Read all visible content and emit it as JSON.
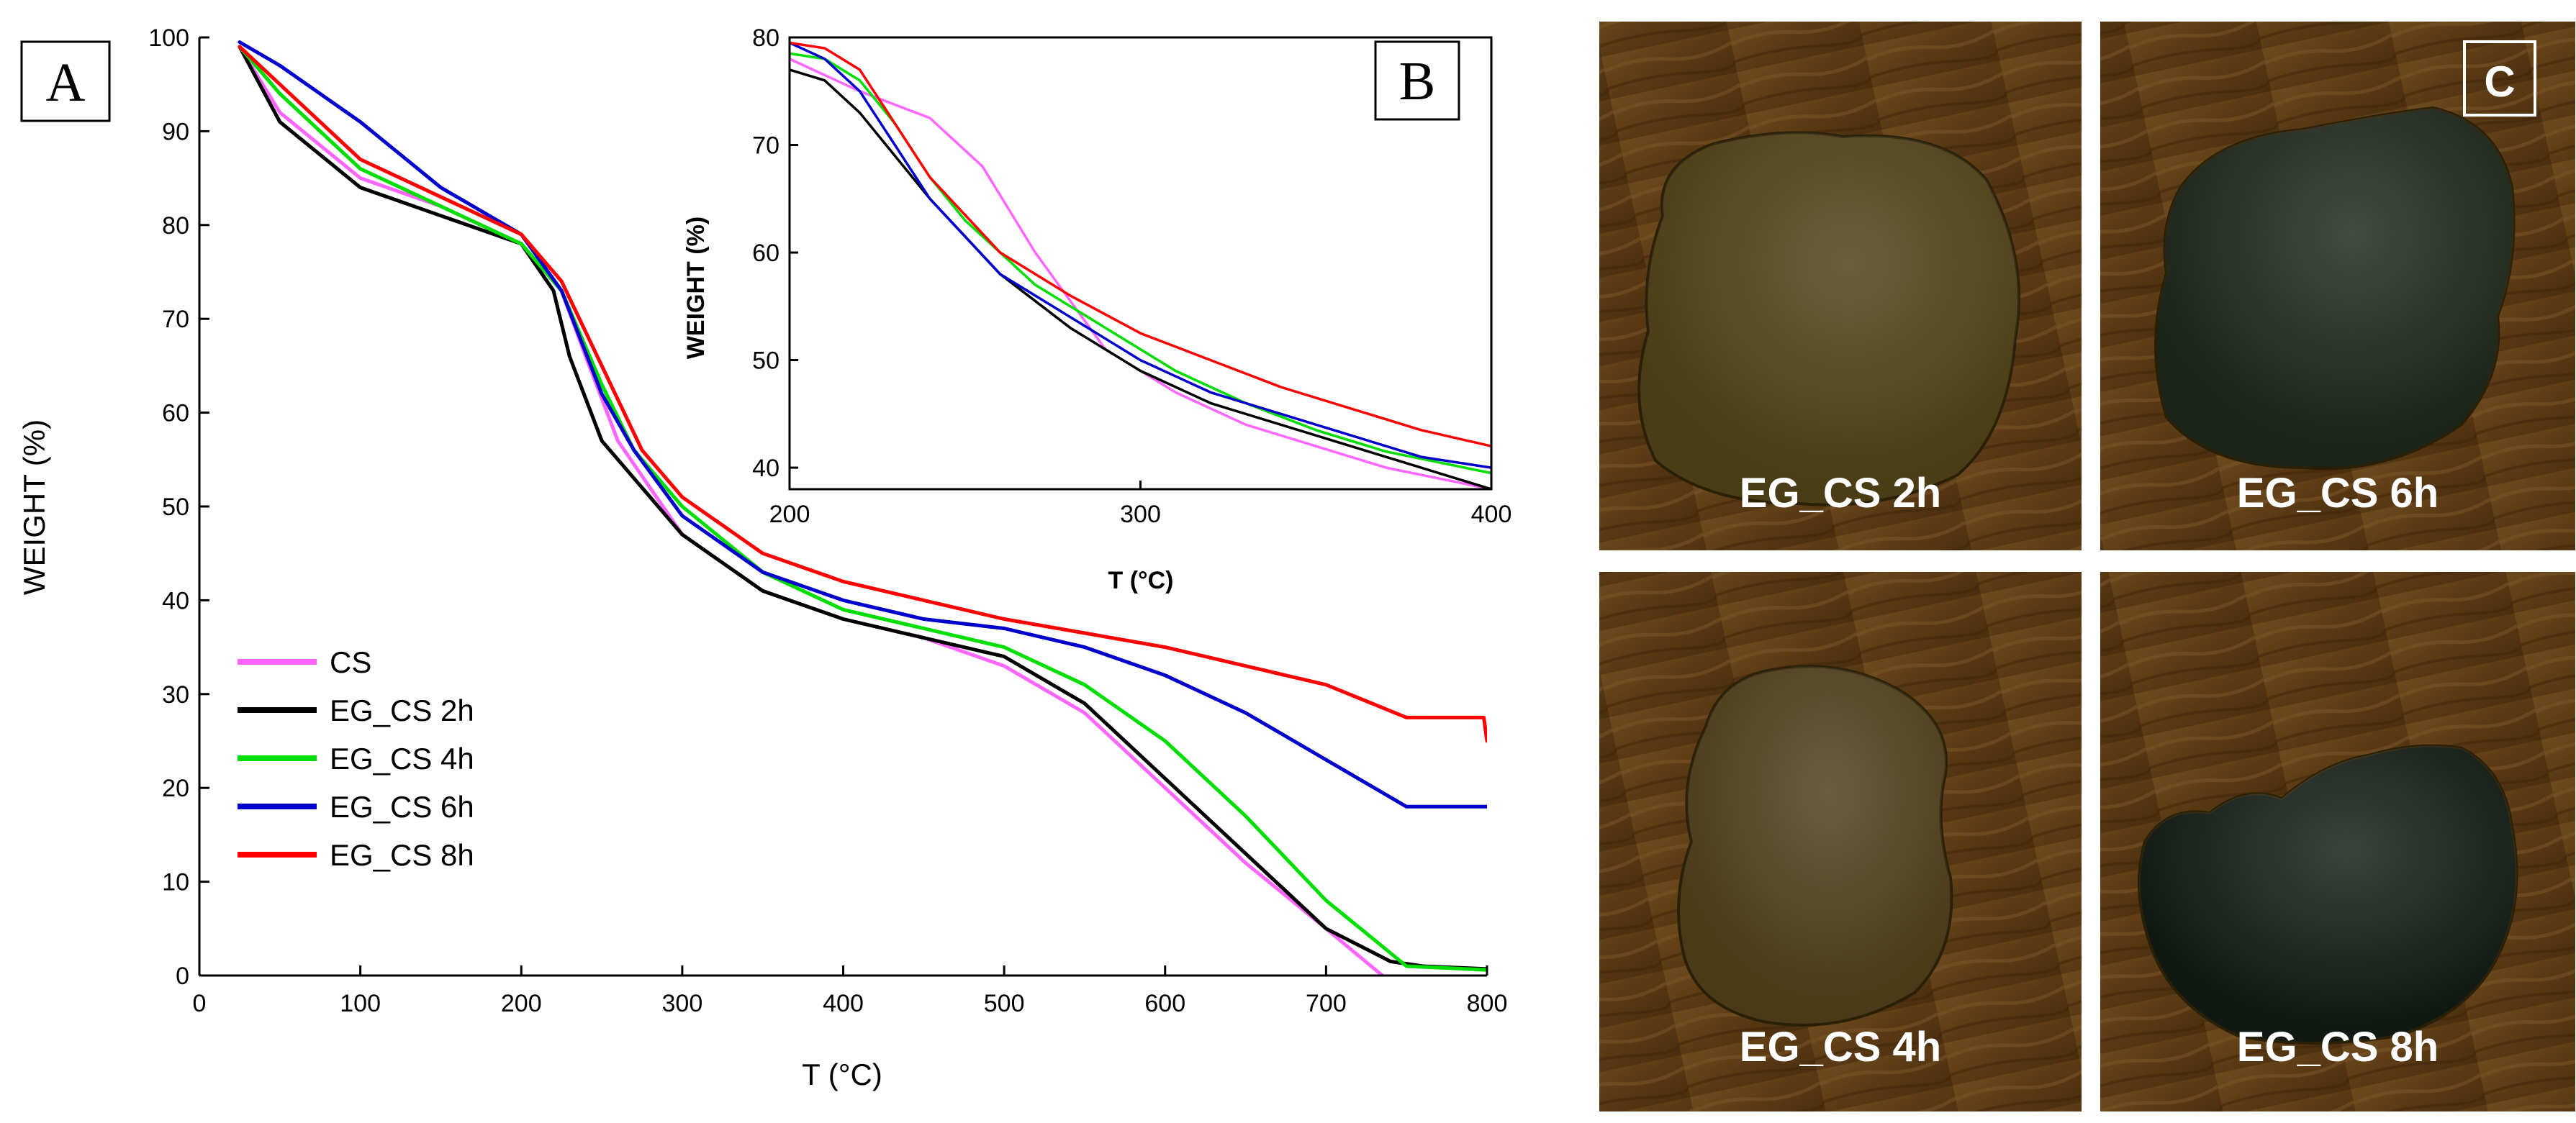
{
  "panels": {
    "a": {
      "letter": "A"
    },
    "b": {
      "letter": "B"
    },
    "c": {
      "letter": "C"
    }
  },
  "chart_data": [
    {
      "type": "line",
      "panel": "A",
      "title": "",
      "xlabel": "T (°C)",
      "ylabel": "WEIGHT (%)",
      "xlim": [
        0,
        800
      ],
      "ylim": [
        0,
        100
      ],
      "xticks": [
        0,
        100,
        200,
        300,
        400,
        500,
        600,
        700,
        800
      ],
      "yticks": [
        0,
        10,
        20,
        30,
        40,
        50,
        60,
        70,
        80,
        90,
        100
      ],
      "legend_position": "bottom-left",
      "series": [
        {
          "name": "CS",
          "color": "#ff66ff",
          "points": [
            [
              25,
              99
            ],
            [
              50,
              92
            ],
            [
              100,
              85
            ],
            [
              150,
              82
            ],
            [
              200,
              78
            ],
            [
              225,
              73
            ],
            [
              240,
              66
            ],
            [
              260,
              57
            ],
            [
              300,
              47
            ],
            [
              350,
              41
            ],
            [
              400,
              38
            ],
            [
              450,
              36
            ],
            [
              500,
              33
            ],
            [
              550,
              28
            ],
            [
              600,
              20
            ],
            [
              650,
              12
            ],
            [
              700,
              5
            ],
            [
              735,
              0
            ]
          ]
        },
        {
          "name": "EG_CS 2h",
          "color": "#000000",
          "points": [
            [
              25,
              99
            ],
            [
              50,
              91
            ],
            [
              100,
              84
            ],
            [
              150,
              81
            ],
            [
              200,
              78
            ],
            [
              220,
              73
            ],
            [
              230,
              66
            ],
            [
              250,
              57
            ],
            [
              300,
              47
            ],
            [
              350,
              41
            ],
            [
              400,
              38
            ],
            [
              450,
              36
            ],
            [
              500,
              34
            ],
            [
              550,
              29
            ],
            [
              600,
              21
            ],
            [
              650,
              13
            ],
            [
              700,
              5
            ],
            [
              740,
              1.5
            ],
            [
              760,
              1
            ],
            [
              800,
              0.7
            ]
          ]
        },
        {
          "name": "EG_CS 4h",
          "color": "#00dd00",
          "points": [
            [
              25,
              99
            ],
            [
              50,
              94
            ],
            [
              100,
              86
            ],
            [
              150,
              82
            ],
            [
              200,
              78
            ],
            [
              225,
              73
            ],
            [
              250,
              63
            ],
            [
              270,
              56
            ],
            [
              300,
              50
            ],
            [
              350,
              43
            ],
            [
              400,
              39
            ],
            [
              450,
              37
            ],
            [
              500,
              35
            ],
            [
              550,
              31
            ],
            [
              600,
              25
            ],
            [
              650,
              17
            ],
            [
              700,
              8
            ],
            [
              750,
              1
            ],
            [
              800,
              0.6
            ]
          ]
        },
        {
          "name": "EG_CS 6h",
          "color": "#0000cc",
          "points": [
            [
              25,
              99.5
            ],
            [
              50,
              97
            ],
            [
              100,
              91
            ],
            [
              150,
              84
            ],
            [
              200,
              79
            ],
            [
              225,
              73
            ],
            [
              250,
              62
            ],
            [
              270,
              56
            ],
            [
              300,
              49
            ],
            [
              350,
              43
            ],
            [
              400,
              40
            ],
            [
              450,
              38
            ],
            [
              500,
              37
            ],
            [
              550,
              35
            ],
            [
              600,
              32
            ],
            [
              650,
              28
            ],
            [
              700,
              23
            ],
            [
              750,
              18
            ],
            [
              800,
              18
            ]
          ]
        },
        {
          "name": "EG_CS 8h",
          "color": "#ff0000",
          "points": [
            [
              25,
              99
            ],
            [
              50,
              95
            ],
            [
              100,
              87
            ],
            [
              150,
              83
            ],
            [
              200,
              79
            ],
            [
              225,
              74
            ],
            [
              250,
              65
            ],
            [
              275,
              56
            ],
            [
              300,
              51
            ],
            [
              350,
              45
            ],
            [
              400,
              42
            ],
            [
              450,
              40
            ],
            [
              500,
              38
            ],
            [
              550,
              36.5
            ],
            [
              600,
              35
            ],
            [
              650,
              33
            ],
            [
              700,
              31
            ],
            [
              750,
              27.5
            ],
            [
              798,
              27.5
            ],
            [
              800,
              25
            ]
          ]
        }
      ]
    },
    {
      "type": "line",
      "panel": "B",
      "title": "",
      "xlabel": "T (°C)",
      "ylabel": "WEIGHT (%)",
      "xlim": [
        200,
        400
      ],
      "ylim": [
        38,
        80
      ],
      "xticks": [
        200,
        300,
        400
      ],
      "yticks": [
        40,
        50,
        60,
        70,
        80
      ],
      "series": [
        {
          "name": "CS",
          "color": "#ff66ff",
          "points": [
            [
              200,
              78
            ],
            [
              220,
              75
            ],
            [
              240,
              72.5
            ],
            [
              255,
              68
            ],
            [
              270,
              60
            ],
            [
              290,
              51
            ],
            [
              310,
              47
            ],
            [
              330,
              44
            ],
            [
              350,
              42
            ],
            [
              370,
              40
            ],
            [
              400,
              38
            ]
          ]
        },
        {
          "name": "EG_CS 2h",
          "color": "#000000",
          "points": [
            [
              200,
              77
            ],
            [
              210,
              76
            ],
            [
              220,
              73
            ],
            [
              230,
              69
            ],
            [
              240,
              65
            ],
            [
              260,
              58
            ],
            [
              280,
              53
            ],
            [
              300,
              49
            ],
            [
              320,
              46
            ],
            [
              340,
              44
            ],
            [
              360,
              42
            ],
            [
              380,
              40
            ],
            [
              400,
              38
            ]
          ]
        },
        {
          "name": "EG_CS 4h",
          "color": "#00dd00",
          "points": [
            [
              200,
              78.5
            ],
            [
              210,
              78
            ],
            [
              220,
              76
            ],
            [
              230,
              72
            ],
            [
              240,
              67
            ],
            [
              250,
              63
            ],
            [
              270,
              57
            ],
            [
              290,
              53
            ],
            [
              310,
              49
            ],
            [
              330,
              46
            ],
            [
              350,
              43.5
            ],
            [
              370,
              41.5
            ],
            [
              400,
              39.5
            ]
          ]
        },
        {
          "name": "EG_CS 6h",
          "color": "#0000cc",
          "points": [
            [
              200,
              79.5
            ],
            [
              210,
              78
            ],
            [
              220,
              75
            ],
            [
              230,
              70
            ],
            [
              240,
              65
            ],
            [
              260,
              58
            ],
            [
              280,
              54
            ],
            [
              300,
              50
            ],
            [
              320,
              47
            ],
            [
              340,
              45
            ],
            [
              360,
              43
            ],
            [
              380,
              41
            ],
            [
              400,
              40
            ]
          ]
        },
        {
          "name": "EG_CS 8h",
          "color": "#ff0000",
          "points": [
            [
              200,
              79.5
            ],
            [
              210,
              79
            ],
            [
              220,
              77
            ],
            [
              230,
              72
            ],
            [
              240,
              67
            ],
            [
              260,
              60
            ],
            [
              280,
              56
            ],
            [
              300,
              52.5
            ],
            [
              320,
              50
            ],
            [
              340,
              47.5
            ],
            [
              360,
              45.5
            ],
            [
              380,
              43.5
            ],
            [
              400,
              42
            ]
          ]
        }
      ]
    }
  ],
  "photos": [
    {
      "caption": "EG_CS 2h",
      "tone": "#4a3c14"
    },
    {
      "caption": "EG_CS 6h",
      "tone": "#1b2418"
    },
    {
      "caption": "EG_CS 4h",
      "tone": "#4a3a18"
    },
    {
      "caption": "EG_CS 8h",
      "tone": "#0f1912"
    }
  ]
}
